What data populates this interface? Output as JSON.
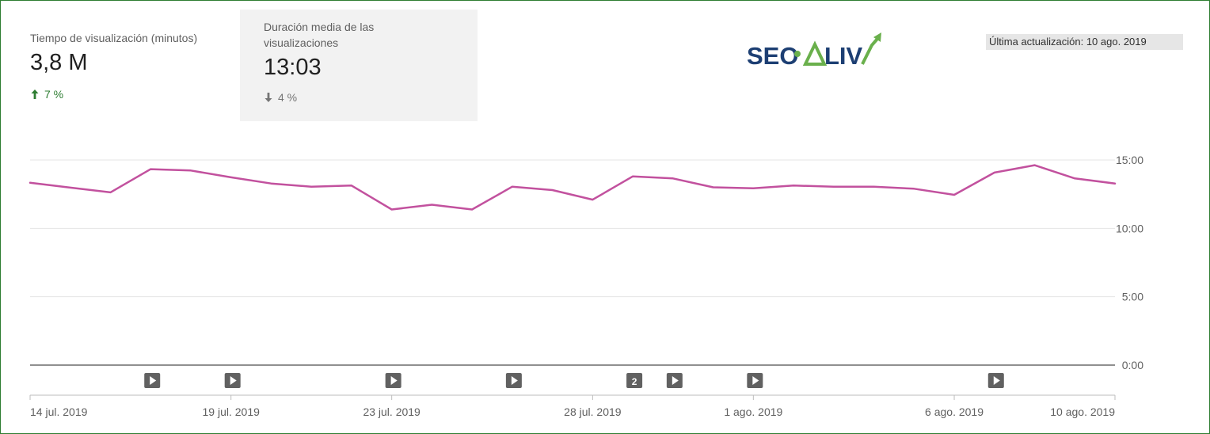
{
  "metrics": {
    "watch_time": {
      "label": "Tiempo de visualización (minutos)",
      "value": "3,8 M",
      "change": "7 %",
      "direction": "up",
      "color": "#2e7d32"
    },
    "avg_duration": {
      "label": "Duración media de las visualizaciones",
      "value": "13:03",
      "change": "4 %",
      "direction": "down",
      "color": "#757575"
    }
  },
  "logo": {
    "text": "SEOALIVE",
    "colors": {
      "navy": "#1d3f73",
      "green": "#6ab04c"
    }
  },
  "last_updated": "Última actualización: 10 ago. 2019",
  "chart_data": {
    "type": "line",
    "x_labels": [
      "14 jul. 2019",
      "19 jul. 2019",
      "23 jul. 2019",
      "28 jul. 2019",
      "1 ago. 2019",
      "6 ago. 2019",
      "10 ago. 2019"
    ],
    "x_label_days": [
      0,
      5,
      9,
      14,
      18,
      23,
      27
    ],
    "y_tick_labels": [
      "0:00",
      "5:00",
      "10:00",
      "15:00"
    ],
    "ylim_minutes": [
      0,
      15
    ],
    "series": [
      {
        "color": "#c2519e",
        "values_minutes": [
          13.33,
          12.98,
          12.63,
          14.33,
          14.23,
          13.73,
          13.28,
          13.05,
          13.13,
          11.38,
          11.73,
          11.38,
          13.05,
          12.8,
          12.1,
          13.8,
          13.65,
          13.0,
          12.93,
          13.13,
          13.05,
          13.05,
          12.9,
          12.45,
          14.08,
          14.62,
          13.65,
          13.28
        ]
      }
    ],
    "video_markers": [
      {
        "day": 3,
        "label": ""
      },
      {
        "day": 5,
        "label": ""
      },
      {
        "day": 9,
        "label": ""
      },
      {
        "day": 12,
        "label": ""
      },
      {
        "day": 15,
        "label": "2"
      },
      {
        "day": 16,
        "label": ""
      },
      {
        "day": 18,
        "label": ""
      },
      {
        "day": 24,
        "label": ""
      }
    ],
    "grid": true
  }
}
